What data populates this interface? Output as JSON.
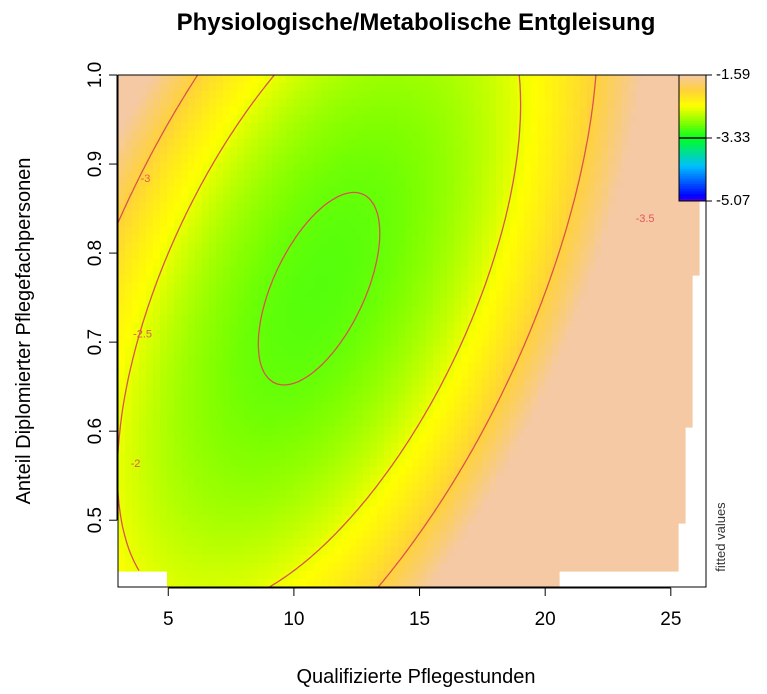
{
  "chart_data": {
    "type": "heatmap",
    "title": "Physiologische/Metabolische Entgleisung",
    "xlabel": "Qualifizierte Pflegestunden",
    "ylabel": "Anteil Diplomierter Pflegefachpersonen",
    "side_label": "fitted values",
    "xlim": [
      3,
      26.4
    ],
    "ylim": [
      0.425,
      1.0
    ],
    "x_ticks": [
      5,
      10,
      15,
      20,
      25
    ],
    "y_ticks": [
      0.5,
      0.6,
      0.7,
      0.8,
      0.9,
      1.0
    ],
    "x_tick_labels": [
      "5",
      "10",
      "15",
      "20",
      "25"
    ],
    "y_tick_labels": [
      "0.5",
      "0.6",
      "0.7",
      "0.8",
      "0.9",
      "1.0"
    ],
    "legend": {
      "position": "top-right",
      "range": [
        -5.07,
        -1.59
      ],
      "labels": [
        "-1.59",
        "-3.33",
        "-5.07"
      ],
      "mark_value": -3.33
    },
    "contour_levels": [
      -2,
      -2.5,
      -3,
      -3.5,
      -4,
      -4.5
    ],
    "contour_labels": [
      {
        "text": "-2",
        "x": 3.5,
        "y": 0.56
      },
      {
        "text": "-2.5",
        "x": 3.6,
        "y": 0.705
      },
      {
        "text": "-3",
        "x": 3.9,
        "y": 0.88
      },
      {
        "text": "-3.5",
        "x": 23.6,
        "y": 0.835
      }
    ],
    "colors": {
      "high": "#f5c9a3",
      "mid_high": "#ffff00",
      "mid": "#00ff22",
      "low_mid": "#00bfff",
      "low": "#0000ff",
      "lowest": "#5a00d8",
      "contour": "#d9534f"
    }
  }
}
